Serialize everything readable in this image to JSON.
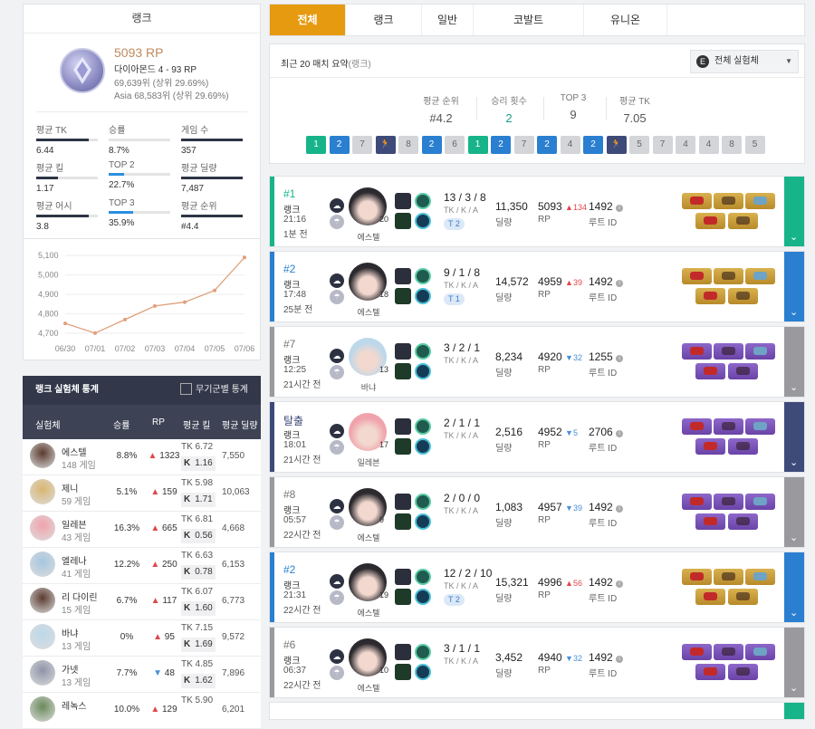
{
  "rank_card": {
    "header": "랭크",
    "rp": "5093 RP",
    "tier_line": "다이아몬드 4 - 93 RP",
    "rank_line": "69,639위 (상위 29.69%)",
    "region_rank_line": "Asia 68,583위 (상위 29.69%)",
    "stats": [
      {
        "label": "평균 TK",
        "value": "6.44",
        "fill": 0.85
      },
      {
        "label": "승률",
        "value": "8.7%",
        "fill": 0.0
      },
      {
        "label": "게임 수",
        "value": "357",
        "fill": 1.0
      },
      {
        "label": "평균 킬",
        "value": "1.17",
        "fill": 0.35
      },
      {
        "label": "TOP 2",
        "value": "22.7%",
        "fill": 0.25
      },
      {
        "label": "평균 딜량",
        "value": "7,487",
        "fill": 1.0
      },
      {
        "label": "평균 어시",
        "value": "3.8",
        "fill": 0.85
      },
      {
        "label": "TOP 3",
        "value": "35.9%",
        "fill": 0.4
      },
      {
        "label": "평균 순위",
        "value": "#4.4",
        "fill": 1.0
      }
    ]
  },
  "chart_data": {
    "type": "line",
    "x": [
      "06/30",
      "07/01",
      "07/02",
      "07/03",
      "07/04",
      "07/05",
      "07/06"
    ],
    "values": [
      4750,
      4700,
      4770,
      4840,
      4860,
      4920,
      5090
    ],
    "yticks": [
      "5,100",
      "5,000",
      "4,900",
      "4,800",
      "4,700"
    ],
    "ylim": [
      4690,
      5110
    ],
    "color": "#e0a07c"
  },
  "sim_stats": {
    "title": "랭크 실험체 통계",
    "weapon_toggle": "무기군별 통계",
    "columns": [
      "실험체",
      "승률",
      "RP",
      "평균 킬",
      "평균 딜량"
    ],
    "rows": [
      {
        "name": "에스텔",
        "games": "148 게임",
        "winrate": "8.8%",
        "rp": "1323",
        "rp_dir": "up",
        "tk": "TK 6.72",
        "k": "1.16",
        "dmg": "7,550",
        "color": "#5a3a2e"
      },
      {
        "name": "제니",
        "games": "59 게임",
        "winrate": "5.1%",
        "rp": "159",
        "rp_dir": "up",
        "tk": "TK 5.98",
        "k": "1.71",
        "dmg": "10,063",
        "color": "#d9b56f"
      },
      {
        "name": "일레븐",
        "games": "43 게임",
        "winrate": "16.3%",
        "rp": "665",
        "rp_dir": "up",
        "tk": "TK 6.81",
        "k": "0.56",
        "dmg": "4,668",
        "color": "#f0a3ac"
      },
      {
        "name": "엘레나",
        "games": "41 게임",
        "winrate": "12.2%",
        "rp": "250",
        "rp_dir": "up",
        "tk": "TK 6.63",
        "k": "0.78",
        "dmg": "6,153",
        "color": "#a5c6e0"
      },
      {
        "name": "리 다이린",
        "games": "15 게임",
        "winrate": "6.7%",
        "rp": "117",
        "rp_dir": "up",
        "tk": "TK 6.07",
        "k": "1.60",
        "dmg": "6,773",
        "color": "#5a3b30"
      },
      {
        "name": "바냐",
        "games": "13 게임",
        "winrate": "0%",
        "rp": "95",
        "rp_dir": "up",
        "tk": "TK  7.15",
        "k": "1.69",
        "dmg": "9,572",
        "color": "#bcd8ea"
      },
      {
        "name": "가넷",
        "games": "13 게임",
        "winrate": "7.7%",
        "rp": "48",
        "rp_dir": "dn",
        "tk": "TK 4.85",
        "k": "1.62",
        "dmg": "7,896",
        "color": "#8e94a8"
      },
      {
        "name": "레녹스",
        "games": "",
        "winrate": "10.0%",
        "rp": "129",
        "rp_dir": "up",
        "tk": "TK 5.90",
        "k": "",
        "dmg": "6,201",
        "color": "#6a8a5a"
      }
    ]
  },
  "tabs": [
    "전체",
    "랭크",
    "일반",
    "코발트",
    "유니온"
  ],
  "summary": {
    "title": "최근 20 매치 요약",
    "title_note": "(랭크)",
    "dropdown": "전체 실험체",
    "stats": [
      {
        "label": "평균 순위",
        "value": "#4.2"
      },
      {
        "label": "승리 횟수",
        "value": "2"
      },
      {
        "label": "TOP 3",
        "value": "9"
      },
      {
        "label": "평균 TK",
        "value": "7.05"
      }
    ],
    "placements": [
      "1",
      "2",
      "7",
      "run",
      "8",
      "2",
      "6",
      "1",
      "2",
      "7",
      "2",
      "4",
      "2",
      "run",
      "5",
      "7",
      "4",
      "4",
      "8",
      "5"
    ]
  },
  "matches": [
    {
      "place": "#1",
      "mode": "랭크",
      "time": "21:16",
      "ago": "1분 전",
      "char": "에스텔",
      "level": "20",
      "kda": "13 / 3 / 8",
      "team": "T 2",
      "dmg": "11,350",
      "rp": "5093",
      "rp_delta": "134",
      "rp_dir": "up",
      "route": "1492",
      "color": "#17b48a",
      "items": "gold"
    },
    {
      "place": "#2",
      "mode": "랭크",
      "time": "17:48",
      "ago": "25분 전",
      "char": "에스텔",
      "level": "18",
      "kda": "9 / 1 / 8",
      "team": "T 1",
      "dmg": "14,572",
      "rp": "4959",
      "rp_delta": "39",
      "rp_dir": "up",
      "route": "1492",
      "color": "#2a7fd0",
      "items": "gold"
    },
    {
      "place": "#7",
      "mode": "랭크",
      "time": "12:25",
      "ago": "21시간 전",
      "char": "바냐",
      "level": "13",
      "kda": "3 / 2 / 1",
      "team": "",
      "dmg": "8,234",
      "rp": "4920",
      "rp_delta": "32",
      "rp_dir": "dn",
      "route": "1255",
      "color": "#9a9a9e",
      "items": "purple"
    },
    {
      "place": "탈출",
      "mode": "랭크",
      "time": "18:01",
      "ago": "21시간 전",
      "char": "일레븐",
      "level": "17",
      "kda": "2 / 1 / 1",
      "team": "",
      "dmg": "2,516",
      "rp": "4952",
      "rp_delta": "5",
      "rp_dir": "dn",
      "route": "2706",
      "color": "#3e4a7a",
      "items": "purple"
    },
    {
      "place": "#8",
      "mode": "랭크",
      "time": "05:57",
      "ago": "22시간 전",
      "char": "에스텔",
      "level": "9",
      "kda": "2 / 0 / 0",
      "team": "",
      "dmg": "1,083",
      "rp": "4957",
      "rp_delta": "39",
      "rp_dir": "dn",
      "route": "1492",
      "color": "#9a9a9e",
      "items": "purple"
    },
    {
      "place": "#2",
      "mode": "랭크",
      "time": "21:31",
      "ago": "22시간 전",
      "char": "에스텔",
      "level": "19",
      "kda": "12 / 2 / 10",
      "team": "T 2",
      "dmg": "15,321",
      "rp": "4996",
      "rp_delta": "56",
      "rp_dir": "up",
      "route": "1492",
      "color": "#2a7fd0",
      "items": "gold"
    },
    {
      "place": "#6",
      "mode": "랭크",
      "time": "06:37",
      "ago": "22시간 전",
      "char": "에스텔",
      "level": "10",
      "kda": "3 / 1 / 1",
      "team": "",
      "dmg": "3,452",
      "rp": "4940",
      "rp_delta": "32",
      "rp_dir": "dn",
      "route": "1492",
      "color": "#9a9a9e",
      "items": "purple"
    }
  ],
  "labels": {
    "tka": "TK / K / A",
    "dmg": "딜량",
    "rp": "RP",
    "route": "루트 ID",
    "k": "K"
  }
}
